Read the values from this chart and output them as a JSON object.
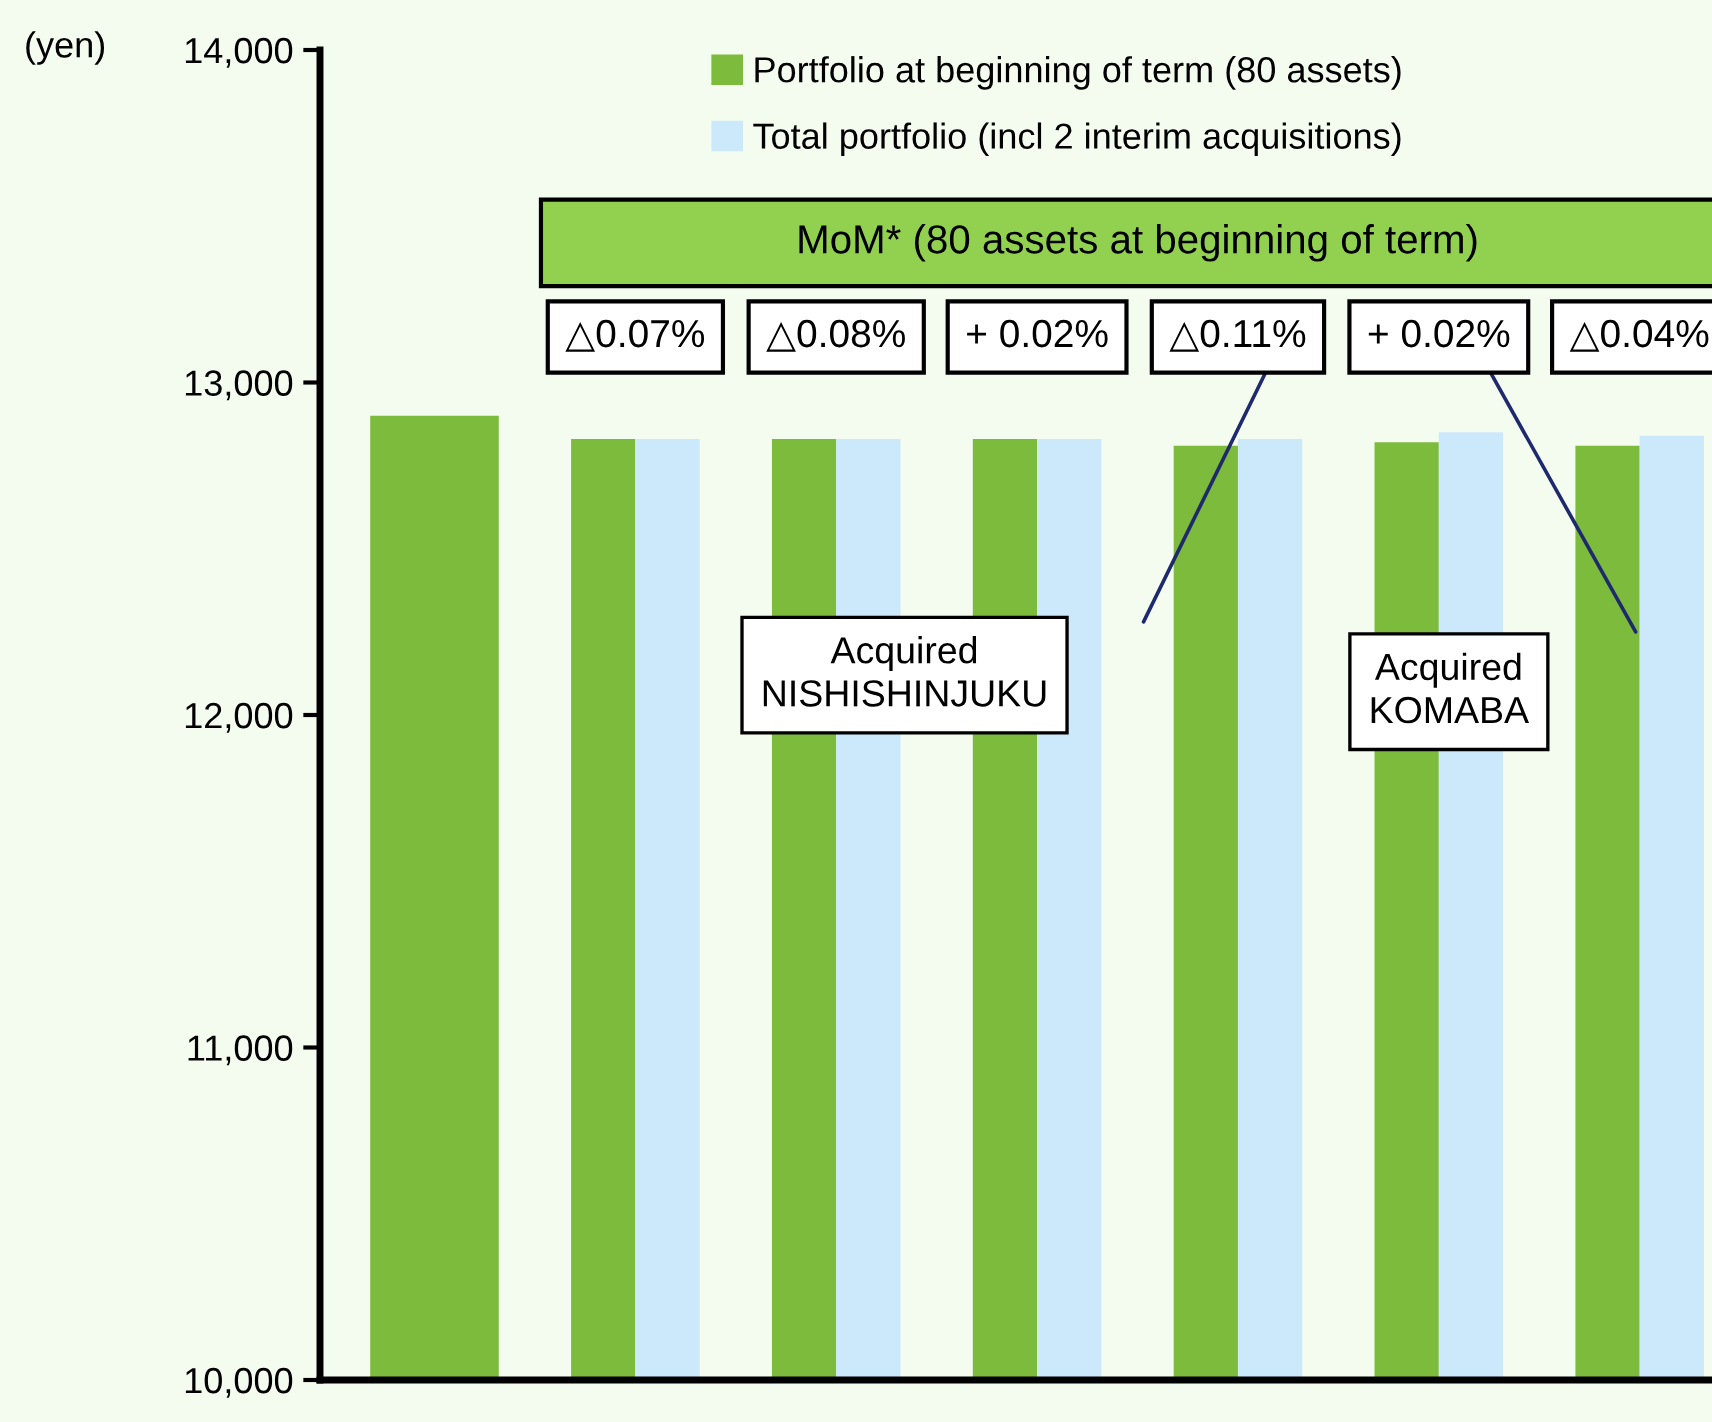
{
  "chart_data": {
    "type": "bar",
    "ylabel": "(yen)",
    "categories": [
      null,
      null,
      null,
      null,
      null,
      null,
      null
    ],
    "series": [
      {
        "name": "Portfolio at beginning of term (80 assets)",
        "color": "#7dbb3c",
        "values": [
          12900,
          12830,
          12830,
          12830,
          12810,
          12820,
          12810
        ]
      },
      {
        "name": "Total portfolio (incl 2 interim acquisitions)",
        "color": "#cce9fb",
        "values": [
          null,
          12830,
          12830,
          12830,
          12830,
          12850,
          12840
        ]
      }
    ],
    "ylim": [
      10000,
      14000
    ],
    "yticks": [
      {
        "value": 10000,
        "label": "10,000"
      },
      {
        "value": 11000,
        "label": "11,000"
      },
      {
        "value": 12000,
        "label": "12,000"
      },
      {
        "value": 13000,
        "label": "13,000"
      },
      {
        "value": 14000,
        "label": "14,000"
      }
    ],
    "tick_labels": "y",
    "grid": false,
    "legend": "top",
    "annotations": [
      "MoM* (80 assets at beginning of term)",
      "△0.07%",
      "△0.08%",
      "+ 0.02%",
      "△0.11%",
      "+ 0.02%",
      "△0.04%",
      "Acquired NISHISHINJUKU",
      "Acquired KOMABA"
    ]
  }
}
